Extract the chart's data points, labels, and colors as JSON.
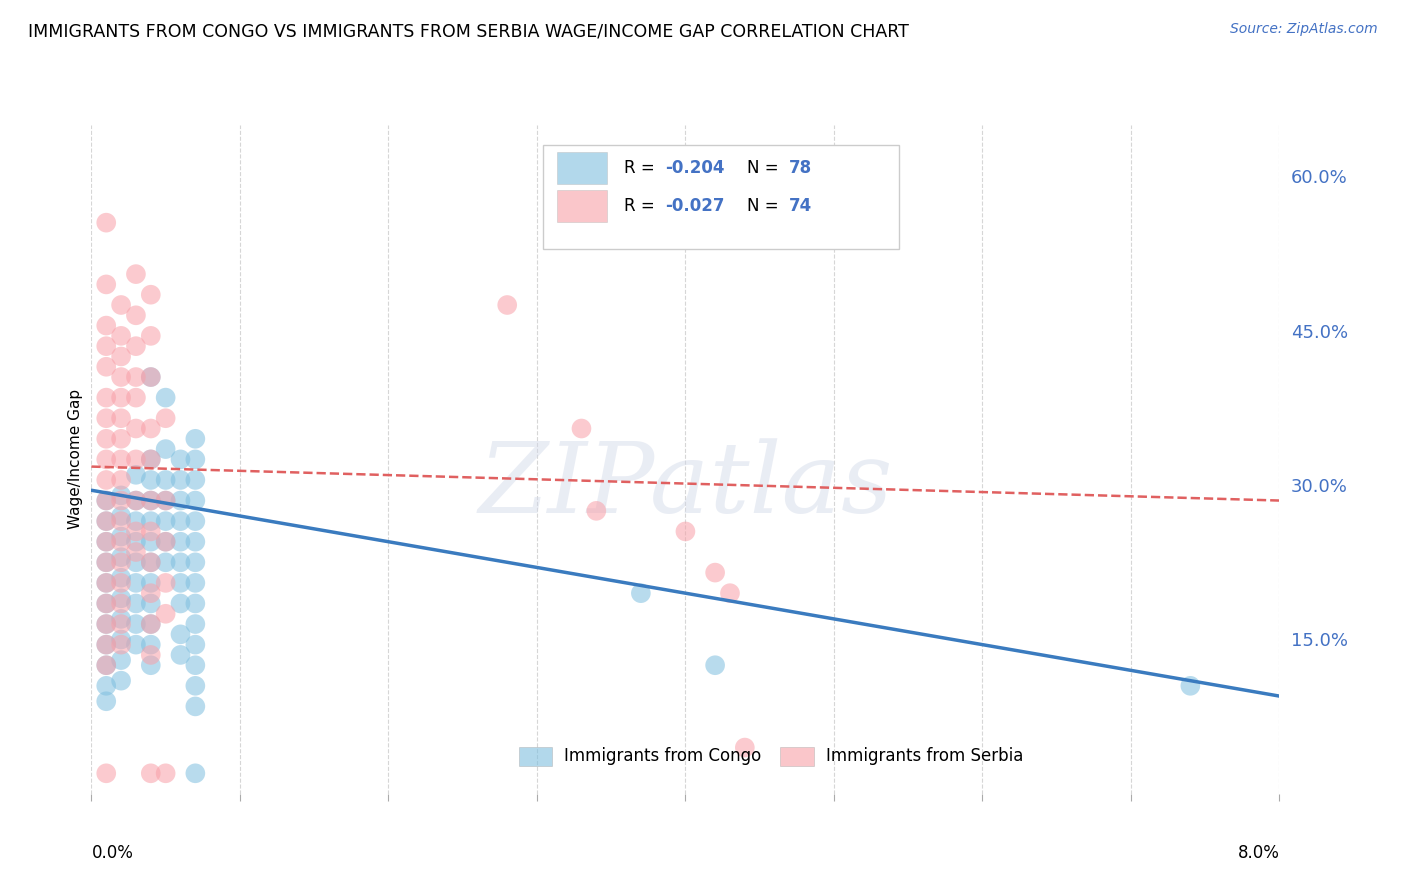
{
  "title": "IMMIGRANTS FROM CONGO VS IMMIGRANTS FROM SERBIA WAGE/INCOME GAP CORRELATION CHART",
  "source": "Source: ZipAtlas.com",
  "ylabel": "Wage/Income Gap",
  "ylabel_right_labels": [
    "60.0%",
    "45.0%",
    "30.0%",
    "15.0%"
  ],
  "ylabel_right_values": [
    0.6,
    0.45,
    0.3,
    0.15
  ],
  "watermark": "ZIPatlas",
  "legend_bottom_congo": "Immigrants from Congo",
  "legend_bottom_serbia": "Immigrants from Serbia",
  "xlim": [
    0.0,
    0.08
  ],
  "ylim": [
    0.0,
    0.65
  ],
  "congo_color": "#7fbfdf",
  "serbia_color": "#f8a0a8",
  "congo_line_color": "#3a7bbf",
  "serbia_line_color": "#e06060",
  "background_color": "#ffffff",
  "grid_color": "#cccccc",
  "congo_points": [
    [
      0.001,
      0.285
    ],
    [
      0.001,
      0.265
    ],
    [
      0.001,
      0.245
    ],
    [
      0.001,
      0.225
    ],
    [
      0.001,
      0.205
    ],
    [
      0.001,
      0.185
    ],
    [
      0.001,
      0.165
    ],
    [
      0.001,
      0.145
    ],
    [
      0.001,
      0.125
    ],
    [
      0.001,
      0.105
    ],
    [
      0.001,
      0.09
    ],
    [
      0.002,
      0.29
    ],
    [
      0.002,
      0.27
    ],
    [
      0.002,
      0.25
    ],
    [
      0.002,
      0.23
    ],
    [
      0.002,
      0.21
    ],
    [
      0.002,
      0.19
    ],
    [
      0.002,
      0.17
    ],
    [
      0.002,
      0.15
    ],
    [
      0.002,
      0.13
    ],
    [
      0.002,
      0.11
    ],
    [
      0.003,
      0.31
    ],
    [
      0.003,
      0.285
    ],
    [
      0.003,
      0.265
    ],
    [
      0.003,
      0.245
    ],
    [
      0.003,
      0.225
    ],
    [
      0.003,
      0.205
    ],
    [
      0.003,
      0.185
    ],
    [
      0.003,
      0.165
    ],
    [
      0.003,
      0.145
    ],
    [
      0.004,
      0.325
    ],
    [
      0.004,
      0.305
    ],
    [
      0.004,
      0.285
    ],
    [
      0.004,
      0.265
    ],
    [
      0.004,
      0.245
    ],
    [
      0.004,
      0.225
    ],
    [
      0.004,
      0.205
    ],
    [
      0.004,
      0.185
    ],
    [
      0.004,
      0.165
    ],
    [
      0.004,
      0.145
    ],
    [
      0.004,
      0.125
    ],
    [
      0.004,
      0.405
    ],
    [
      0.005,
      0.335
    ],
    [
      0.005,
      0.305
    ],
    [
      0.005,
      0.285
    ],
    [
      0.005,
      0.265
    ],
    [
      0.005,
      0.245
    ],
    [
      0.005,
      0.225
    ],
    [
      0.005,
      0.385
    ],
    [
      0.006,
      0.325
    ],
    [
      0.006,
      0.305
    ],
    [
      0.006,
      0.285
    ],
    [
      0.006,
      0.265
    ],
    [
      0.006,
      0.245
    ],
    [
      0.006,
      0.225
    ],
    [
      0.006,
      0.205
    ],
    [
      0.006,
      0.185
    ],
    [
      0.006,
      0.155
    ],
    [
      0.006,
      0.135
    ],
    [
      0.007,
      0.345
    ],
    [
      0.007,
      0.325
    ],
    [
      0.007,
      0.305
    ],
    [
      0.007,
      0.285
    ],
    [
      0.007,
      0.265
    ],
    [
      0.007,
      0.245
    ],
    [
      0.007,
      0.225
    ],
    [
      0.007,
      0.205
    ],
    [
      0.007,
      0.185
    ],
    [
      0.007,
      0.165
    ],
    [
      0.007,
      0.145
    ],
    [
      0.007,
      0.125
    ],
    [
      0.007,
      0.105
    ],
    [
      0.007,
      0.085
    ],
    [
      0.007,
      0.02
    ],
    [
      0.037,
      0.195
    ],
    [
      0.042,
      0.125
    ],
    [
      0.074,
      0.105
    ]
  ],
  "serbia_points": [
    [
      0.001,
      0.555
    ],
    [
      0.001,
      0.495
    ],
    [
      0.001,
      0.455
    ],
    [
      0.001,
      0.435
    ],
    [
      0.001,
      0.415
    ],
    [
      0.001,
      0.385
    ],
    [
      0.001,
      0.365
    ],
    [
      0.001,
      0.345
    ],
    [
      0.001,
      0.325
    ],
    [
      0.001,
      0.305
    ],
    [
      0.001,
      0.285
    ],
    [
      0.001,
      0.265
    ],
    [
      0.001,
      0.245
    ],
    [
      0.001,
      0.225
    ],
    [
      0.001,
      0.205
    ],
    [
      0.001,
      0.185
    ],
    [
      0.001,
      0.165
    ],
    [
      0.001,
      0.145
    ],
    [
      0.001,
      0.125
    ],
    [
      0.001,
      0.02
    ],
    [
      0.002,
      0.475
    ],
    [
      0.002,
      0.445
    ],
    [
      0.002,
      0.425
    ],
    [
      0.002,
      0.405
    ],
    [
      0.002,
      0.385
    ],
    [
      0.002,
      0.365
    ],
    [
      0.002,
      0.345
    ],
    [
      0.002,
      0.325
    ],
    [
      0.002,
      0.305
    ],
    [
      0.002,
      0.285
    ],
    [
      0.002,
      0.265
    ],
    [
      0.002,
      0.245
    ],
    [
      0.002,
      0.225
    ],
    [
      0.002,
      0.205
    ],
    [
      0.002,
      0.185
    ],
    [
      0.002,
      0.165
    ],
    [
      0.002,
      0.145
    ],
    [
      0.003,
      0.505
    ],
    [
      0.003,
      0.465
    ],
    [
      0.003,
      0.435
    ],
    [
      0.003,
      0.405
    ],
    [
      0.003,
      0.385
    ],
    [
      0.003,
      0.355
    ],
    [
      0.003,
      0.325
    ],
    [
      0.003,
      0.285
    ],
    [
      0.003,
      0.255
    ],
    [
      0.003,
      0.235
    ],
    [
      0.004,
      0.485
    ],
    [
      0.004,
      0.445
    ],
    [
      0.004,
      0.405
    ],
    [
      0.004,
      0.355
    ],
    [
      0.004,
      0.325
    ],
    [
      0.004,
      0.285
    ],
    [
      0.004,
      0.255
    ],
    [
      0.004,
      0.225
    ],
    [
      0.004,
      0.195
    ],
    [
      0.004,
      0.165
    ],
    [
      0.004,
      0.135
    ],
    [
      0.004,
      0.02
    ],
    [
      0.005,
      0.365
    ],
    [
      0.005,
      0.285
    ],
    [
      0.005,
      0.245
    ],
    [
      0.005,
      0.205
    ],
    [
      0.005,
      0.175
    ],
    [
      0.005,
      0.02
    ],
    [
      0.028,
      0.475
    ],
    [
      0.033,
      0.355
    ],
    [
      0.034,
      0.275
    ],
    [
      0.04,
      0.255
    ],
    [
      0.042,
      0.215
    ],
    [
      0.043,
      0.195
    ],
    [
      0.044,
      0.045
    ]
  ],
  "congo_trendline": [
    [
      0.0,
      0.295
    ],
    [
      0.08,
      0.095
    ]
  ],
  "serbia_trendline": [
    [
      0.0,
      0.318
    ],
    [
      0.08,
      0.285
    ]
  ]
}
